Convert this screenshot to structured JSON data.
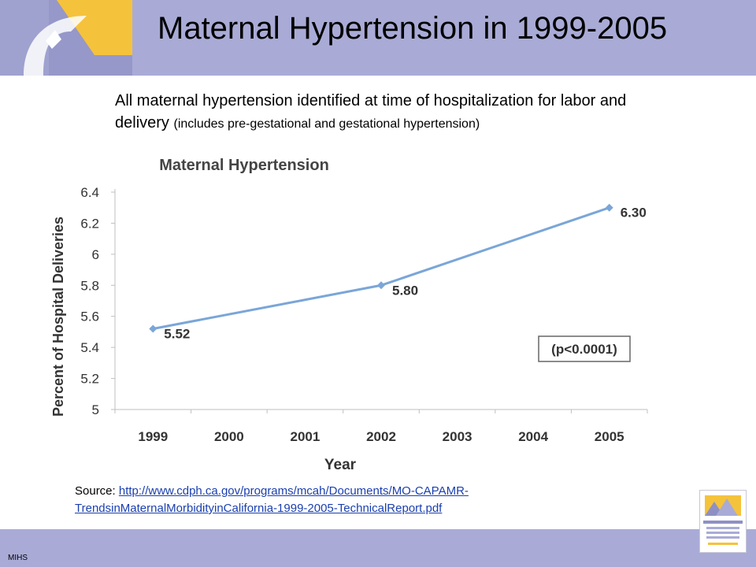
{
  "slide": {
    "title": "Maternal Hypertension in 1999-2005",
    "subtitle_main": "All maternal hypertension identified at time of hospitalization for labor and delivery",
    "subtitle_small": "(includes pre-gestational and gestational hypertension)",
    "source_label": "Source: ",
    "source_link_line1": "http://www.cdph.ca.gov/programs/mcah/Documents/MO-CAPAMR-",
    "source_link_line2": "TrendsinMaternalMorbidityinCalifornia-1999-2005-TechnicalReport.pdf",
    "footer": "MIHS",
    "colors": {
      "band": "#a9abd6",
      "accent_yellow": "#f5c23b",
      "line": "#7aa6d8"
    }
  },
  "chart_data": {
    "type": "line",
    "title": "Maternal Hypertension",
    "xlabel": "Year",
    "ylabel": "Percent of Hospital Deliveries",
    "categories": [
      "1999",
      "2000",
      "2001",
      "2002",
      "2003",
      "2004",
      "2005"
    ],
    "series": [
      {
        "x": [
          "1999",
          "2002",
          "2005"
        ],
        "values": [
          5.52,
          5.8,
          6.3
        ],
        "labels": [
          "5.52",
          "5.80",
          "6.30"
        ]
      }
    ],
    "ylim": [
      5,
      6.4
    ],
    "yticks": [
      "5",
      "5.2",
      "5.4",
      "5.6",
      "5.8",
      "6",
      "6.2",
      "6.4"
    ],
    "annotation": "(p<0.0001)",
    "grid": false
  }
}
